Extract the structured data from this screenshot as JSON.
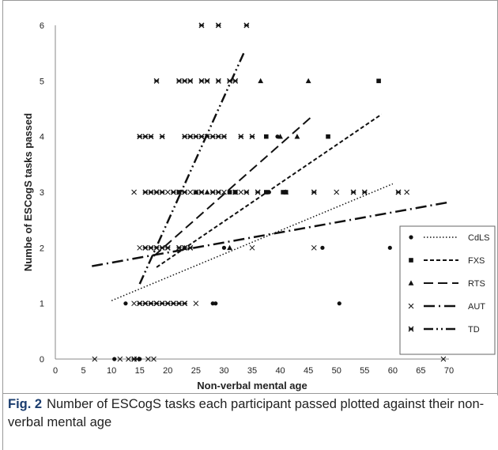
{
  "caption": {
    "label": "Fig. 2",
    "text": "Number of ESCogS tasks each participant passed plotted against their non-verbal mental age"
  },
  "chart_data": {
    "type": "scatter",
    "xlabel": "Non-verbal mental age",
    "ylabel": "Numbe of ESCogS tasks passed",
    "xlim": [
      0,
      70
    ],
    "ylim": [
      0,
      6
    ],
    "xticks": [
      0,
      5,
      10,
      15,
      20,
      25,
      30,
      35,
      40,
      45,
      50,
      55,
      60,
      65,
      70
    ],
    "yticks": [
      0,
      1,
      2,
      3,
      4,
      5,
      6
    ],
    "grid": false,
    "legend_position": "bottom-right",
    "series": [
      {
        "name": "CdLS",
        "marker": "circle",
        "line": "dotted",
        "points": [
          [
            10.5,
            0
          ],
          [
            15,
            0
          ],
          [
            12.5,
            1
          ],
          [
            28,
            1
          ],
          [
            28.5,
            1
          ],
          [
            50.5,
            1
          ],
          [
            30,
            2
          ],
          [
            47.5,
            2
          ],
          [
            59.5,
            2
          ],
          [
            38,
            3
          ],
          [
            39.5,
            4
          ]
        ],
        "trend": [
          [
            10,
            1.05
          ],
          [
            60,
            3.15
          ]
        ]
      },
      {
        "name": "FXS",
        "marker": "square",
        "line": "dashed",
        "points": [
          [
            22,
            3
          ],
          [
            31,
            3
          ],
          [
            32,
            3
          ],
          [
            37.5,
            3
          ],
          [
            40.5,
            3
          ],
          [
            41,
            3
          ],
          [
            37.5,
            4
          ],
          [
            48.5,
            4
          ],
          [
            57.5,
            5
          ]
        ],
        "trend": [
          [
            18,
            1.65
          ],
          [
            58,
            4.4
          ]
        ]
      },
      {
        "name": "RTS",
        "marker": "triangle",
        "line": "longdash",
        "points": [
          [
            23,
            2
          ],
          [
            31,
            2
          ],
          [
            25,
            3
          ],
          [
            27,
            3
          ],
          [
            41,
            3
          ],
          [
            40,
            4
          ],
          [
            43,
            4
          ],
          [
            36.5,
            5
          ],
          [
            45,
            5
          ]
        ],
        "trend": [
          [
            17.5,
            1.85
          ],
          [
            45.5,
            4.35
          ]
        ]
      },
      {
        "name": "AUT",
        "marker": "x",
        "line": "dashdot",
        "points": [
          [
            7,
            0
          ],
          [
            11.5,
            0
          ],
          [
            13,
            0
          ],
          [
            14.5,
            0
          ],
          [
            16.5,
            0
          ],
          [
            17.5,
            0
          ],
          [
            69,
            0
          ],
          [
            14,
            1
          ],
          [
            15,
            1
          ],
          [
            16,
            1
          ],
          [
            17,
            1
          ],
          [
            18,
            1
          ],
          [
            19,
            1
          ],
          [
            20,
            1
          ],
          [
            21,
            1
          ],
          [
            22,
            1
          ],
          [
            23,
            1
          ],
          [
            25,
            1
          ],
          [
            15,
            2
          ],
          [
            19,
            2
          ],
          [
            22,
            2
          ],
          [
            23,
            2
          ],
          [
            35,
            2
          ],
          [
            46,
            2
          ],
          [
            14,
            3
          ],
          [
            18,
            3
          ],
          [
            20,
            3
          ],
          [
            24,
            3
          ],
          [
            26,
            3
          ],
          [
            30,
            3
          ],
          [
            33,
            3
          ],
          [
            36,
            3
          ],
          [
            50,
            3
          ],
          [
            62.5,
            3
          ]
        ],
        "trend": [
          [
            6.5,
            1.67
          ],
          [
            70,
            2.82
          ]
        ]
      },
      {
        "name": "TD",
        "marker": "asterisk",
        "line": "dashdotdot",
        "points": [
          [
            14,
            0
          ],
          [
            15,
            1
          ],
          [
            16,
            1
          ],
          [
            17,
            1
          ],
          [
            18,
            1
          ],
          [
            19,
            1
          ],
          [
            20,
            1
          ],
          [
            21,
            1
          ],
          [
            22,
            1
          ],
          [
            23,
            1
          ],
          [
            16,
            2
          ],
          [
            17,
            2
          ],
          [
            18,
            2
          ],
          [
            19,
            2
          ],
          [
            20,
            2
          ],
          [
            22,
            2
          ],
          [
            23,
            2
          ],
          [
            24,
            2
          ],
          [
            16,
            3
          ],
          [
            17,
            3
          ],
          [
            18,
            3
          ],
          [
            19,
            3
          ],
          [
            21,
            3
          ],
          [
            22,
            3
          ],
          [
            23,
            3
          ],
          [
            25,
            3
          ],
          [
            26,
            3
          ],
          [
            28,
            3
          ],
          [
            29,
            3
          ],
          [
            32,
            3
          ],
          [
            34,
            3
          ],
          [
            36,
            3
          ],
          [
            46,
            3
          ],
          [
            53,
            3
          ],
          [
            55,
            3
          ],
          [
            61,
            3
          ],
          [
            15,
            4
          ],
          [
            16,
            4
          ],
          [
            17,
            4
          ],
          [
            19,
            4
          ],
          [
            23,
            4
          ],
          [
            24,
            4
          ],
          [
            25,
            4
          ],
          [
            26,
            4
          ],
          [
            27,
            4
          ],
          [
            28,
            4
          ],
          [
            29,
            4
          ],
          [
            30,
            4
          ],
          [
            33,
            4
          ],
          [
            35,
            4
          ],
          [
            18,
            5
          ],
          [
            22,
            5
          ],
          [
            23,
            5
          ],
          [
            24,
            5
          ],
          [
            26,
            5
          ],
          [
            27,
            5
          ],
          [
            29,
            5
          ],
          [
            31,
            5
          ],
          [
            32,
            5
          ],
          [
            26,
            6
          ],
          [
            29,
            6
          ],
          [
            34,
            6
          ]
        ],
        "trend": [
          [
            15,
            1.35
          ],
          [
            33.5,
            5.5
          ]
        ]
      }
    ]
  }
}
